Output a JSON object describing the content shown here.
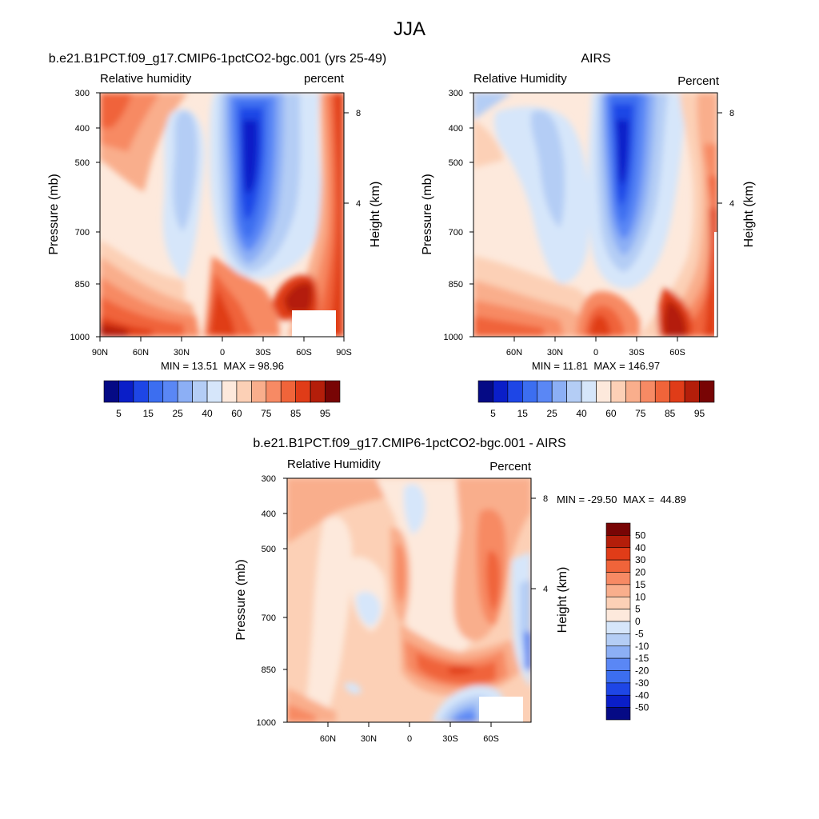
{
  "figure": {
    "title": "JJA"
  },
  "chart_data": [
    {
      "type": "heatmap",
      "id": "model",
      "title": "b.e21.B1PCT.f09_g17.CMIP6-1pctCO2-bgc.001 (yrs 25-49)",
      "left_label": "Relative humidity",
      "right_label": "percent",
      "ylabel": "Pressure (mb)",
      "y2label": "Height (km)",
      "y_ticks": [
        "300",
        "400",
        "500",
        "700",
        "850",
        "1000"
      ],
      "y2_ticks": [
        "8",
        "4"
      ],
      "x_ticks": [
        "90N",
        "60N",
        "30N",
        "0",
        "30S",
        "60S",
        "90S"
      ],
      "stats": "MIN = 13.51  MAX = 98.96",
      "colorbar_labels": [
        "5",
        "15",
        "25",
        "40",
        "60",
        "75",
        "85",
        "95"
      ],
      "colorbar_colors": [
        "#050a85",
        "#0a1ec8",
        "#1e46e6",
        "#3c6ef0",
        "#5a87f5",
        "#8caff5",
        "#b4cdf5",
        "#d6e6fa",
        "#fde9dc",
        "#fcd0b6",
        "#f9ae8c",
        "#f78a64",
        "#f0643a",
        "#e03c18",
        "#b41e0a",
        "#780505"
      ]
    },
    {
      "type": "heatmap",
      "id": "airs",
      "title": "AIRS",
      "left_label": "Relative Humidity",
      "right_label": "Percent",
      "ylabel": "Pressure (mb)",
      "y2label": "Height (km)",
      "y_ticks": [
        "300",
        "400",
        "500",
        "700",
        "850",
        "1000"
      ],
      "y2_ticks": [
        "8",
        "4"
      ],
      "x_ticks": [
        "60N",
        "30N",
        "0",
        "30S",
        "60S"
      ],
      "stats": "MIN = 11.81  MAX = 146.97",
      "colorbar_labels": [
        "5",
        "15",
        "25",
        "40",
        "60",
        "75",
        "85",
        "95"
      ],
      "colorbar_colors": [
        "#050a85",
        "#0a1ec8",
        "#1e46e6",
        "#3c6ef0",
        "#5a87f5",
        "#8caff5",
        "#b4cdf5",
        "#d6e6fa",
        "#fde9dc",
        "#fcd0b6",
        "#f9ae8c",
        "#f78a64",
        "#f0643a",
        "#e03c18",
        "#b41e0a",
        "#780505"
      ]
    },
    {
      "type": "heatmap",
      "id": "diff",
      "title": "b.e21.B1PCT.f09_g17.CMIP6-1pctCO2-bgc.001 - AIRS",
      "left_label": "Relative Humidity",
      "right_label": "Percent",
      "ylabel": "Pressure (mb)",
      "y2label": "Height (km)",
      "y_ticks": [
        "300",
        "400",
        "500",
        "700",
        "850",
        "1000"
      ],
      "y2_ticks": [
        "8",
        "4"
      ],
      "x_ticks": [
        "60N",
        "30N",
        "0",
        "30S",
        "60S"
      ],
      "stats": "MIN = -29.50  MAX =  44.89",
      "colorbar_labels": [
        "50",
        "40",
        "30",
        "20",
        "15",
        "10",
        "5",
        "0",
        "-5",
        "-10",
        "-15",
        "-20",
        "-30",
        "-40",
        "-50"
      ],
      "colorbar_colors": [
        "#780505",
        "#b41e0a",
        "#e03c18",
        "#f0643a",
        "#f78a64",
        "#f9ae8c",
        "#fcd0b6",
        "#fde9dc",
        "#d6e6fa",
        "#b4cdf5",
        "#8caff5",
        "#5a87f5",
        "#3c6ef0",
        "#1e46e6",
        "#0a1ec8",
        "#050a85"
      ]
    }
  ]
}
